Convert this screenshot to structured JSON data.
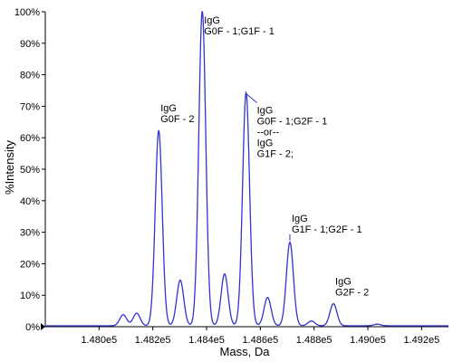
{
  "chart_data": {
    "type": "line",
    "xlabel": "Mass, Da",
    "ylabel": "%Intensity",
    "xlim": [
      147800,
      149300
    ],
    "ylim": [
      0,
      100
    ],
    "x_ticks": [
      148000,
      148200,
      148400,
      148600,
      148800,
      149000,
      149200
    ],
    "x_tick_labels": [
      "1.480e5",
      "1.482e5",
      "1.484e5",
      "1.486e5",
      "1.488e5",
      "1.490e5",
      "1.492e5"
    ],
    "y_ticks": [
      0,
      10,
      20,
      30,
      40,
      50,
      60,
      70,
      80,
      90,
      100
    ],
    "y_tick_labels": [
      "0%",
      "10%",
      "20%",
      "30%",
      "40%",
      "50%",
      "60%",
      "70%",
      "80%",
      "90%",
      "100%"
    ],
    "series": [
      {
        "color": "#3333cc",
        "peaks": [
          {
            "x": 148090,
            "y": 3.5
          },
          {
            "x": 148140,
            "y": 4
          },
          {
            "x": 148222,
            "y": 62
          },
          {
            "x": 148302,
            "y": 14.5
          },
          {
            "x": 148384,
            "y": 100
          },
          {
            "x": 148467,
            "y": 16.5
          },
          {
            "x": 148547,
            "y": 74
          },
          {
            "x": 148627,
            "y": 9
          },
          {
            "x": 148710,
            "y": 26.5
          },
          {
            "x": 148790,
            "y": 1.5
          },
          {
            "x": 148872,
            "y": 7
          },
          {
            "x": 149035,
            "y": 0.5
          }
        ],
        "baseline": 0.3
      }
    ],
    "annotations": [
      {
        "x": 148222,
        "y": 62,
        "lines": [
          "IgG",
          "G0F - 2"
        ]
      },
      {
        "x": 148384,
        "y": 100,
        "lines": [
          "IgG",
          "G0F - 1;G1F - 1"
        ]
      },
      {
        "x": 148547,
        "y": 74,
        "lines": [
          "IgG",
          "G0F - 1;G2F - 1",
          "--or--",
          "IgG",
          "G1F - 2;"
        ]
      },
      {
        "x": 148710,
        "y": 26.5,
        "lines": [
          "IgG",
          "G1F - 1;G2F - 1"
        ]
      },
      {
        "x": 148872,
        "y": 7,
        "lines": [
          "IgG",
          "G2F - 2"
        ]
      }
    ],
    "grid": false,
    "legend": "none"
  }
}
